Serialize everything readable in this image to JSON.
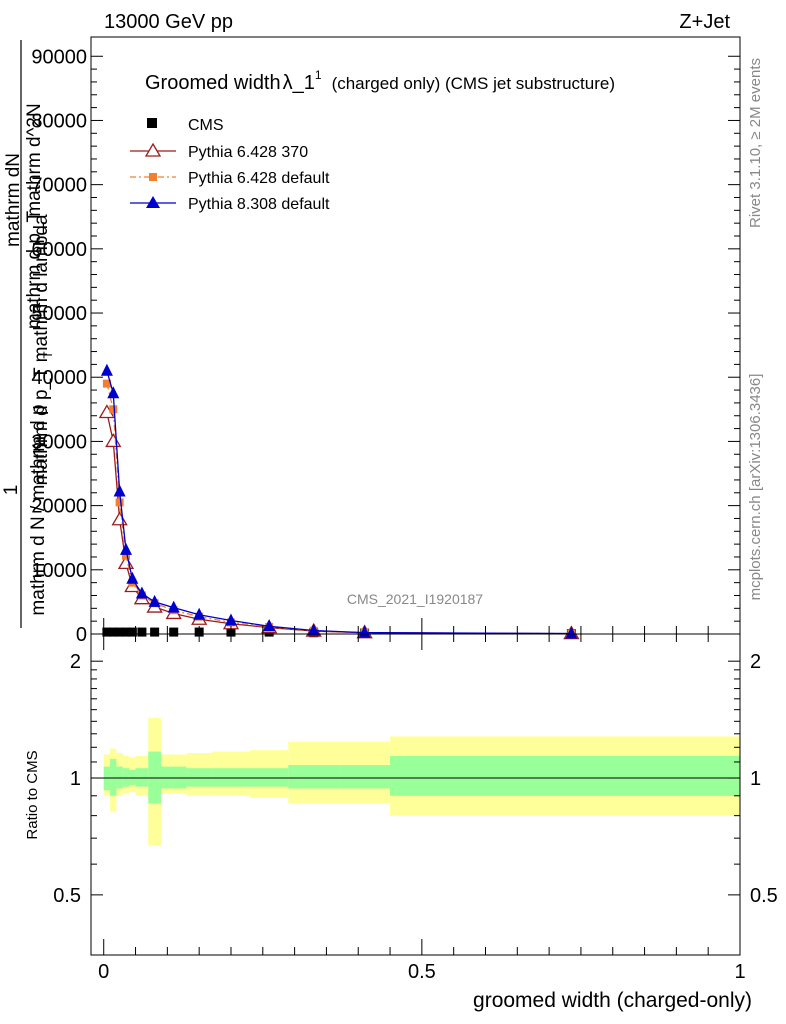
{
  "header": {
    "energy": "13000 GeV pp",
    "process": "Z+Jet"
  },
  "side": {
    "rivet": "Rivet 3.1.10, ≥ 2M events",
    "mcplots": "mcplots.cern.ch [arXiv:1306.3436]"
  },
  "watermark": "CMS_2021_I1920187",
  "title": {
    "main": "Groomed width",
    "symbol": "λ_1",
    "sup": "1",
    "note": "(charged only) (CMS jet substructure)"
  },
  "legend": {
    "items": [
      {
        "label": "CMS",
        "color": "#000000",
        "marker": "square"
      },
      {
        "label": "Pythia 6.428 370",
        "color": "#9b1c1c",
        "marker": "open-triangle"
      },
      {
        "label": "Pythia 6.428 default",
        "color": "#f08030",
        "marker": "small-square"
      },
      {
        "label": "Pythia 8.308 default",
        "color": "#0000cc",
        "marker": "filled-triangle"
      }
    ]
  },
  "ylabel_main": {
    "frac_num": "1",
    "frac_den_top": "mathrm dN",
    "frac_den_bottom": "mathrm d p_T",
    "cont_num": "mathrm d^2N",
    "cont_den1": "mathrm d p",
    "cont_den2": "_T mathrm d lambda",
    "line_a": "mathrm d N / mathrm d p",
    "line_b": "T"
  },
  "ylabel_ratio": "Ratio to CMS",
  "xlabel": "groomed width (charged-only)",
  "chart_data": {
    "type": "line",
    "main": {
      "xlim": [
        -0.02,
        1.0
      ],
      "ylim": [
        0,
        93000
      ],
      "yticks": [
        0,
        10000,
        20000,
        30000,
        40000,
        50000,
        60000,
        70000,
        80000,
        90000
      ],
      "ytick_labels": [
        "0",
        "10000",
        "20000",
        "30000",
        "40000",
        "50000",
        "60000",
        "70000",
        "80000",
        "90000"
      ],
      "x": [
        0.005,
        0.015,
        0.025,
        0.035,
        0.045,
        0.06,
        0.08,
        0.11,
        0.15,
        0.2,
        0.26,
        0.33,
        0.41,
        0.735
      ],
      "series": [
        {
          "name": "CMS",
          "color": "#000000",
          "values": [
            300,
            300,
            300,
            300,
            300,
            300,
            300,
            300,
            300,
            300,
            300,
            200,
            150,
            50
          ]
        },
        {
          "name": "Pythia 6.428 370",
          "color": "#9b1c1c",
          "values": [
            34500,
            30000,
            17800,
            11000,
            7400,
            5500,
            4200,
            3200,
            2300,
            1600,
            1000,
            450,
            200,
            60
          ]
        },
        {
          "name": "Pythia 6.428 default",
          "color": "#f08030",
          "values": [
            39000,
            35000,
            20500,
            12200,
            8000,
            6000,
            4800,
            3700,
            2700,
            1800,
            1100,
            500,
            200,
            60
          ]
        },
        {
          "name": "Pythia 8.308 default",
          "color": "#0000cc",
          "values": [
            41000,
            37500,
            22200,
            13100,
            8600,
            6300,
            5000,
            4100,
            3000,
            2100,
            1200,
            550,
            220,
            70
          ]
        }
      ]
    },
    "ratio": {
      "ylim": [
        0.35,
        2.35
      ],
      "yticks": [
        0.5,
        1,
        2
      ],
      "ytick_labels": [
        "0.5",
        "1",
        "2"
      ],
      "xticks": [
        0,
        0.5,
        1
      ],
      "xtick_labels": [
        "0",
        "0.5",
        "1"
      ],
      "bands": {
        "edges": [
          0,
          0.01,
          0.02,
          0.03,
          0.04,
          0.05,
          0.07,
          0.09,
          0.13,
          0.17,
          0.23,
          0.29,
          0.37,
          0.45,
          1.0
        ],
        "stat_lo": [
          0.93,
          0.9,
          0.94,
          0.95,
          0.96,
          0.95,
          0.86,
          0.94,
          0.95,
          0.95,
          0.95,
          0.94,
          0.94,
          0.9
        ],
        "stat_hi": [
          1.07,
          1.12,
          1.07,
          1.06,
          1.05,
          1.06,
          1.17,
          1.07,
          1.06,
          1.06,
          1.06,
          1.08,
          1.08,
          1.14
        ],
        "tot_lo": [
          0.9,
          0.82,
          0.9,
          0.91,
          0.92,
          0.9,
          0.67,
          0.91,
          0.9,
          0.9,
          0.89,
          0.86,
          0.86,
          0.8
        ],
        "tot_hi": [
          1.15,
          1.19,
          1.16,
          1.14,
          1.13,
          1.14,
          1.43,
          1.15,
          1.16,
          1.17,
          1.18,
          1.24,
          1.24,
          1.28
        ]
      },
      "stat_color": "#99ff99",
      "tot_color": "#ffff99"
    }
  }
}
